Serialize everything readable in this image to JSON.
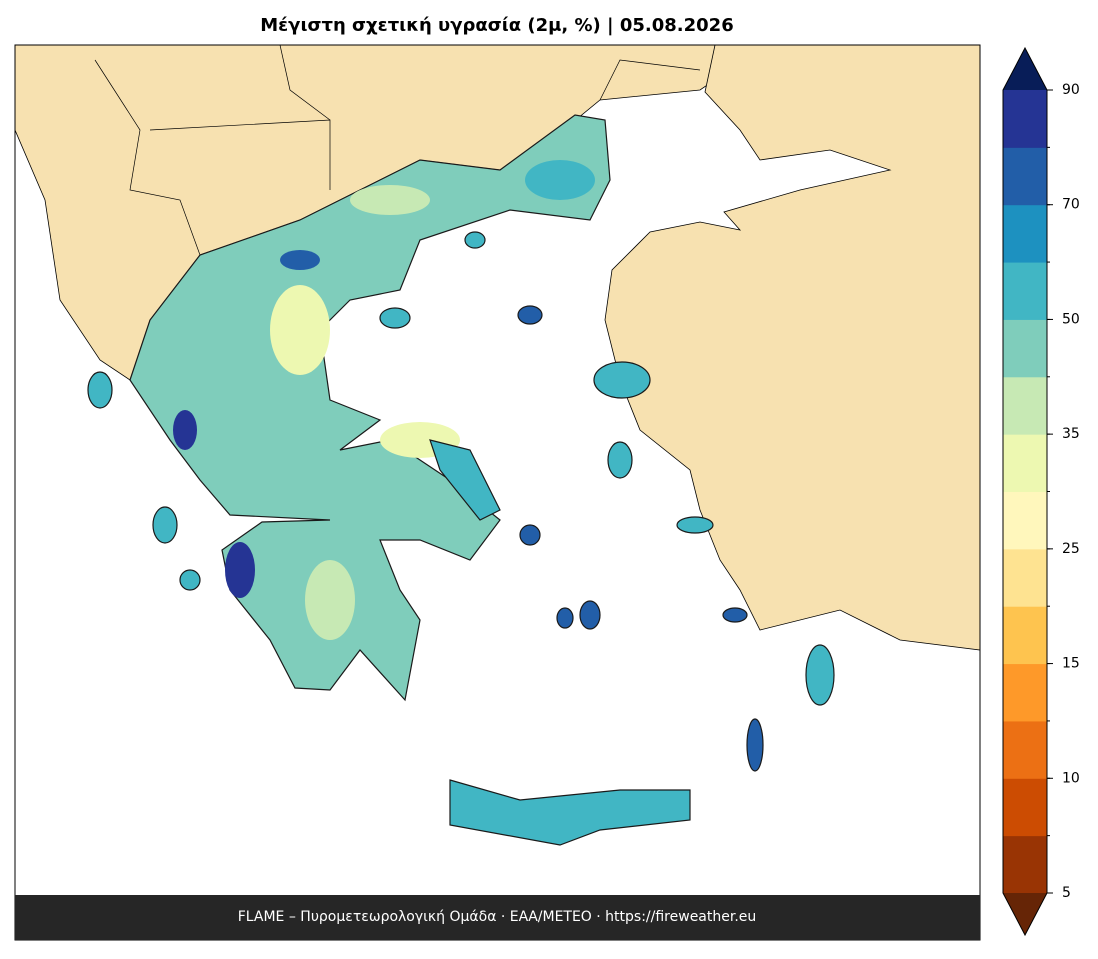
{
  "title": "Μέγιστη σχετική υγρασία (2μ, %)  |  05.08.2026",
  "footer": "FLAME – Πυρομετεωρολογική Ομάδα · ΕΑΑ/METEO · https://fireweather.eu",
  "colorbar": {
    "levels": [
      5,
      7.5,
      10,
      12.5,
      15,
      20,
      25,
      30,
      35,
      42.5,
      50,
      60,
      70,
      80,
      90
    ],
    "colors": [
      "#993404",
      "#cc4c02",
      "#ec7014",
      "#fe9929",
      "#fec44f",
      "#fee391",
      "#fff7bc",
      "#edf8b1",
      "#c7e9b4",
      "#7fcdbb",
      "#41b6c4",
      "#1d91c0",
      "#225ea8",
      "#253494"
    ],
    "under_color": "#662506",
    "over_color": "#081d58",
    "ticks": [
      5,
      10,
      15,
      25,
      35,
      50,
      70,
      90
    ]
  }
}
